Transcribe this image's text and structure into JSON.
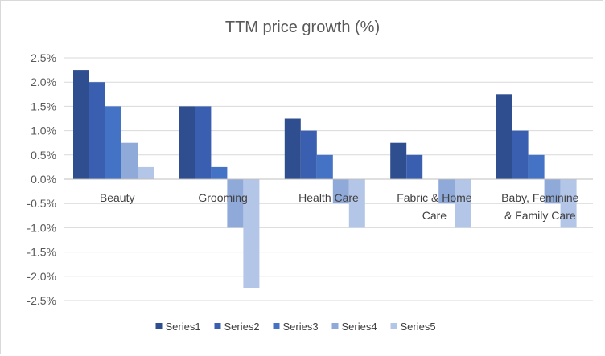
{
  "chart_data": {
    "type": "bar",
    "title": "TTM price growth (%)",
    "xlabel": "",
    "ylabel": "",
    "ylim": [
      -2.5,
      2.5
    ],
    "yticks": [
      "2.5%",
      "2.0%",
      "1.5%",
      "1.0%",
      "0.5%",
      "0.0%",
      "-0.5%",
      "-1.0%",
      "-1.5%",
      "-2.0%",
      "-2.5%"
    ],
    "categories": [
      [
        "Beauty"
      ],
      [
        "Grooming"
      ],
      [
        "Health Care"
      ],
      [
        "Fabric & Home",
        "Care"
      ],
      [
        "Baby, Feminine",
        "& Family Care"
      ]
    ],
    "series": [
      {
        "name": "Series1",
        "color": "#2f4e8f",
        "values": [
          2.25,
          1.5,
          1.25,
          0.75,
          1.75
        ]
      },
      {
        "name": "Series2",
        "color": "#3a5fb0",
        "values": [
          2.0,
          1.5,
          1.0,
          0.5,
          1.0
        ]
      },
      {
        "name": "Series3",
        "color": "#4472c4",
        "values": [
          1.5,
          0.25,
          0.5,
          0.0,
          0.5
        ]
      },
      {
        "name": "Series4",
        "color": "#8fa9d8",
        "values": [
          0.75,
          -1.0,
          -0.5,
          -0.5,
          -0.5
        ]
      },
      {
        "name": "Series5",
        "color": "#b4c6e7",
        "values": [
          0.25,
          -2.25,
          -1.0,
          -1.0,
          -1.0
        ]
      }
    ],
    "grid": true,
    "legend": "bottom"
  }
}
